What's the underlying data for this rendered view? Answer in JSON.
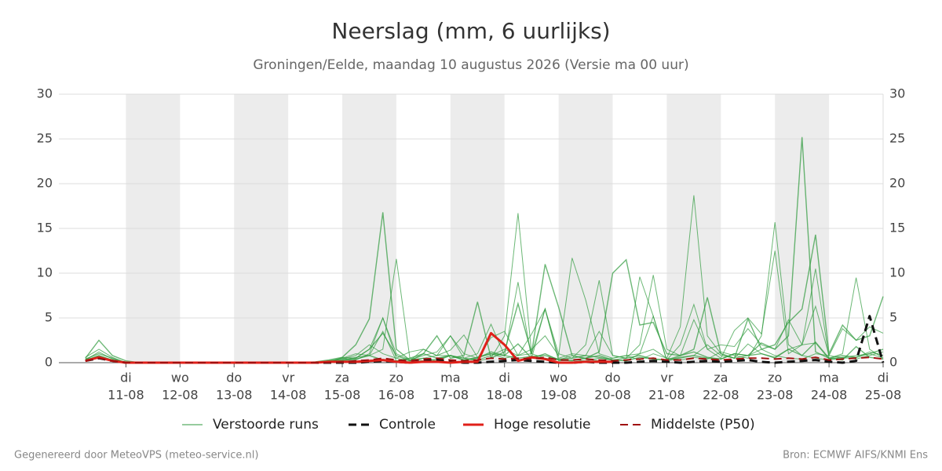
{
  "chart_data": {
    "type": "line",
    "title": "Neerslag (mm, 6 uurlijks)",
    "subtitle": "Groningen/Eelde, maandag 10 augustus 2026 (Versie ma 00 uur)",
    "footer_left": "Gegenereerd door MeteoVPS (meteo-service.nl)",
    "footer_right": "Bron: ECMWF AIFS/KNMI Ens",
    "xlim": [
      -0.24,
      15
    ],
    "xticks": [
      {
        "value": 1,
        "label": "11-08",
        "day": "di"
      },
      {
        "value": 2,
        "label": "12-08",
        "day": "wo"
      },
      {
        "value": 3,
        "label": "13-08",
        "day": "do"
      },
      {
        "value": 4,
        "label": "14-08",
        "day": "vr"
      },
      {
        "value": 5,
        "label": "15-08",
        "day": "za"
      },
      {
        "value": 6,
        "label": "16-08",
        "day": "zo"
      },
      {
        "value": 7,
        "label": "17-08",
        "day": "ma"
      },
      {
        "value": 8,
        "label": "18-08",
        "day": "di"
      },
      {
        "value": 9,
        "label": "19-08",
        "day": "wo"
      },
      {
        "value": 10,
        "label": "20-08",
        "day": "do"
      },
      {
        "value": 11,
        "label": "21-08",
        "day": "vr"
      },
      {
        "value": 12,
        "label": "22-08",
        "day": "za"
      },
      {
        "value": 13,
        "label": "23-08",
        "day": "zo"
      },
      {
        "value": 14,
        "label": "24-08",
        "day": "ma"
      },
      {
        "value": 15,
        "label": "25-08",
        "day": "di"
      }
    ],
    "ylim": [
      0,
      30
    ],
    "yticks": [
      0,
      5,
      10,
      15,
      20,
      25,
      30
    ],
    "grid": true,
    "x": [
      0.25,
      0.5,
      0.75,
      1,
      1.25,
      1.5,
      1.75,
      2,
      2.25,
      2.5,
      2.75,
      3,
      3.25,
      3.5,
      3.75,
      4,
      4.25,
      4.5,
      4.75,
      5,
      5.25,
      5.5,
      5.75,
      6,
      6.25,
      6.5,
      6.75,
      7,
      7.25,
      7.5,
      7.75,
      8,
      8.25,
      8.5,
      8.75,
      9,
      9.25,
      9.5,
      9.75,
      10,
      10.25,
      10.5,
      10.75,
      11,
      11.25,
      11.5,
      11.75,
      12,
      12.25,
      12.5,
      12.75,
      13,
      13.25,
      13.5,
      13.75,
      14,
      14.25,
      14.5,
      14.75,
      15
    ],
    "ensemble": {
      "name": "Verstoorde runs",
      "color": "#2e9a3c",
      "members": [
        [
          0.5,
          2.5,
          0.8,
          0.2,
          0,
          0,
          0,
          0,
          0,
          0,
          0,
          0,
          0,
          0,
          0,
          0,
          0,
          0.1,
          0.3,
          0.6,
          2.0,
          4.9,
          16.8,
          1.5,
          0.3,
          0.5,
          0.2,
          0.8,
          0.3,
          0.5,
          1.2,
          0.8,
          2.1,
          0.5,
          1.0,
          0.3,
          0.2,
          0.5,
          0.8,
          0.3,
          0.2,
          0.6,
          0.4,
          0.3,
          0.8,
          1.2,
          0.6,
          0.4,
          1.0,
          0.8,
          2.2,
          1.5,
          3.0,
          25.2,
          1.2,
          0.5,
          0.3,
          1.8,
          0.6,
          0.4
        ],
        [
          0.3,
          1.2,
          0.4,
          0,
          0,
          0,
          0,
          0,
          0,
          0,
          0,
          0,
          0,
          0,
          0,
          0,
          0,
          0,
          0.2,
          0.5,
          1.0,
          0.8,
          1.5,
          11.6,
          0.5,
          0.2,
          0.4,
          0.8,
          0.5,
          0.2,
          0.5,
          3.0,
          16.7,
          1.0,
          0.5,
          0.3,
          0.8,
          0.4,
          0.2,
          0.5,
          0.8,
          0.3,
          1.0,
          0.5,
          0.3,
          0.6,
          0.4,
          1.2,
          0.8,
          0.5,
          3.0,
          15.7,
          2.0,
          0.8,
          0.5,
          0.3,
          0.6,
          0.4,
          0.8,
          1.2
        ],
        [
          0.2,
          0.8,
          0.3,
          0,
          0,
          0,
          0,
          0,
          0,
          0,
          0,
          0,
          0,
          0,
          0,
          0,
          0,
          0,
          0.1,
          0.4,
          0.8,
          2.0,
          1.0,
          0.5,
          1.2,
          1.5,
          0.8,
          1.4,
          3.1,
          0.6,
          1.0,
          0.5,
          0.8,
          1.5,
          3.0,
          0.8,
          11.7,
          7.0,
          1.0,
          0.5,
          0.8,
          1.0,
          1.5,
          0.5,
          4.0,
          18.7,
          3.0,
          1.0,
          0.5,
          0.8,
          1.5,
          0.8,
          0.5,
          0.4,
          1.0,
          0.8,
          0.5,
          0.6,
          1.2,
          0.8
        ],
        [
          0.4,
          1.0,
          0.5,
          0,
          0,
          0,
          0,
          0,
          0,
          0,
          0,
          0,
          0,
          0,
          0,
          0,
          0,
          0,
          0.2,
          0.3,
          0.5,
          1.5,
          3.3,
          0.8,
          0.2,
          1.0,
          3.0,
          0.5,
          0.8,
          6.8,
          0.5,
          1.2,
          6.6,
          1.0,
          11.0,
          6.2,
          0.8,
          0.5,
          1.2,
          10.0,
          11.5,
          4.2,
          4.5,
          1.0,
          0.8,
          1.5,
          7.3,
          1.0,
          0.5,
          4.9,
          1.5,
          2.0,
          4.5,
          6.0,
          14.3,
          1.0,
          4.2,
          2.5,
          3.0,
          7.4
        ],
        [
          0.6,
          1.5,
          0.6,
          0,
          0,
          0,
          0,
          0,
          0,
          0,
          0,
          0,
          0,
          0,
          0,
          0,
          0,
          0,
          0.1,
          0.5,
          0.3,
          1.0,
          5.0,
          0.5,
          0.2,
          1.5,
          0.8,
          3.0,
          0.5,
          1.0,
          4.3,
          0.8,
          9.0,
          0.5,
          6.0,
          1.0,
          0.5,
          2.0,
          9.2,
          0.8,
          0.5,
          9.6,
          5.2,
          0.3,
          2.0,
          6.5,
          1.5,
          0.5,
          3.6,
          5.0,
          3.2,
          12.5,
          1.0,
          2.0,
          10.5,
          0.5,
          1.0,
          9.5,
          1.5,
          0.5
        ],
        [
          0.3,
          0.7,
          0.3,
          0,
          0,
          0,
          0,
          0,
          0,
          0,
          0,
          0,
          0,
          0,
          0,
          0,
          0,
          0,
          0,
          0.6,
          0.5,
          1.5,
          5.0,
          1.0,
          0.3,
          0.8,
          1.2,
          3.0,
          1.0,
          0.5,
          2.8,
          3.5,
          0.8,
          3.2,
          6.0,
          0.5,
          1.0,
          0.8,
          3.5,
          0.8,
          0.5,
          2.0,
          9.8,
          1.5,
          0.8,
          4.8,
          1.5,
          2.0,
          1.8,
          3.8,
          2.0,
          1.5,
          4.8,
          2.0,
          6.3,
          0.8,
          3.8,
          2.5,
          4.0,
          3.3
        ],
        [
          0.4,
          0.5,
          0.2,
          0,
          0,
          0,
          0,
          0,
          0,
          0,
          0,
          0,
          0,
          0,
          0,
          0,
          0,
          0,
          0,
          0.2,
          0.4,
          0.8,
          0.3,
          0.2,
          0.5,
          1.0,
          0.5,
          0.8,
          0.3,
          0.6,
          1.0,
          0.8,
          0.5,
          0.7,
          0.8,
          0.4,
          0.5,
          0.8,
          0.6,
          0.3,
          0.5,
          0.8,
          0.4,
          0.3,
          0.6,
          0.8,
          0.5,
          0.4,
          1.0,
          0.8,
          1.0,
          0.6,
          1.5,
          0.8,
          2.3,
          0.5,
          0.8,
          0.6,
          1.0,
          1.5
        ],
        [
          0.3,
          0.8,
          0.3,
          0,
          0,
          0,
          0,
          0,
          0,
          0,
          0,
          0,
          0,
          0,
          0,
          0,
          0,
          0,
          0,
          0.3,
          0.6,
          0.8,
          3.5,
          0.2,
          0.1,
          0.5,
          0.8,
          0.8,
          0.5,
          0.3,
          0.8,
          1.5,
          0.8,
          1.0,
          6.0,
          0.2,
          0.3,
          0.2,
          0.5,
          0.3,
          0.2,
          1.0,
          5.2,
          0.2,
          0.5,
          0.8,
          2.0,
          0.8,
          0.5,
          2.1,
          1.0,
          0.5,
          1.5,
          2.0,
          2.2,
          0.4,
          0.6,
          0.8,
          1.0,
          0.5
        ]
      ]
    },
    "series": [
      {
        "name": "Controle",
        "color": "#111111",
        "dash": true,
        "width": 3,
        "values": [
          0.2,
          0.5,
          0.2,
          0,
          0,
          0,
          0,
          0,
          0,
          0,
          0,
          0,
          0,
          0,
          0,
          0,
          0,
          0,
          0,
          0,
          0,
          0.1,
          0.2,
          0.1,
          0,
          0.2,
          0.3,
          0.1,
          0,
          0,
          0.1,
          0.2,
          0.3,
          0.2,
          0.1,
          0,
          0,
          0.1,
          0,
          0,
          0,
          0.1,
          0.2,
          0.1,
          0,
          0.1,
          0.2,
          0.1,
          0.2,
          0.3,
          0.1,
          0,
          0.1,
          0.2,
          0.3,
          0.1,
          0,
          0.2,
          5.2,
          0
        ]
      },
      {
        "name": "Hoge resolutie",
        "color": "#e0201a",
        "dash": false,
        "width": 3,
        "values": [
          0.2,
          0.6,
          0.2,
          0,
          0,
          0,
          0,
          0,
          0,
          0,
          0,
          0,
          0,
          0,
          0,
          0,
          0,
          0,
          0.1,
          0.1,
          0.1,
          0.2,
          0.3,
          0.1,
          0,
          0.1,
          0.1,
          0,
          0.1,
          0.1,
          3.3,
          2.0,
          0.2,
          0.6,
          0.4,
          0,
          0,
          0.1,
          0.1,
          0.1,
          null,
          null,
          null,
          null,
          null,
          null,
          null,
          null,
          null,
          null,
          null,
          null,
          null,
          null,
          null,
          null,
          null,
          null,
          null,
          null
        ]
      },
      {
        "name": "Middelste (P50)",
        "color": "#a01010",
        "dash": true,
        "width": 2,
        "values": [
          0.2,
          0.5,
          0.2,
          0,
          0,
          0,
          0,
          0,
          0,
          0,
          0,
          0,
          0,
          0,
          0,
          0,
          0,
          0,
          0,
          0.1,
          0.2,
          0.3,
          0.5,
          0.3,
          0.2,
          0.4,
          0.5,
          0.3,
          0.2,
          0.3,
          0.5,
          0.4,
          0.5,
          0.4,
          0.6,
          0.3,
          0.3,
          0.4,
          0.3,
          0.2,
          0.3,
          0.4,
          0.5,
          0.3,
          0.3,
          0.5,
          0.4,
          0.3,
          0.4,
          0.5,
          0.5,
          0.4,
          0.5,
          0.4,
          0.6,
          0.3,
          0.4,
          0.5,
          0.6,
          0.4
        ]
      }
    ]
  }
}
